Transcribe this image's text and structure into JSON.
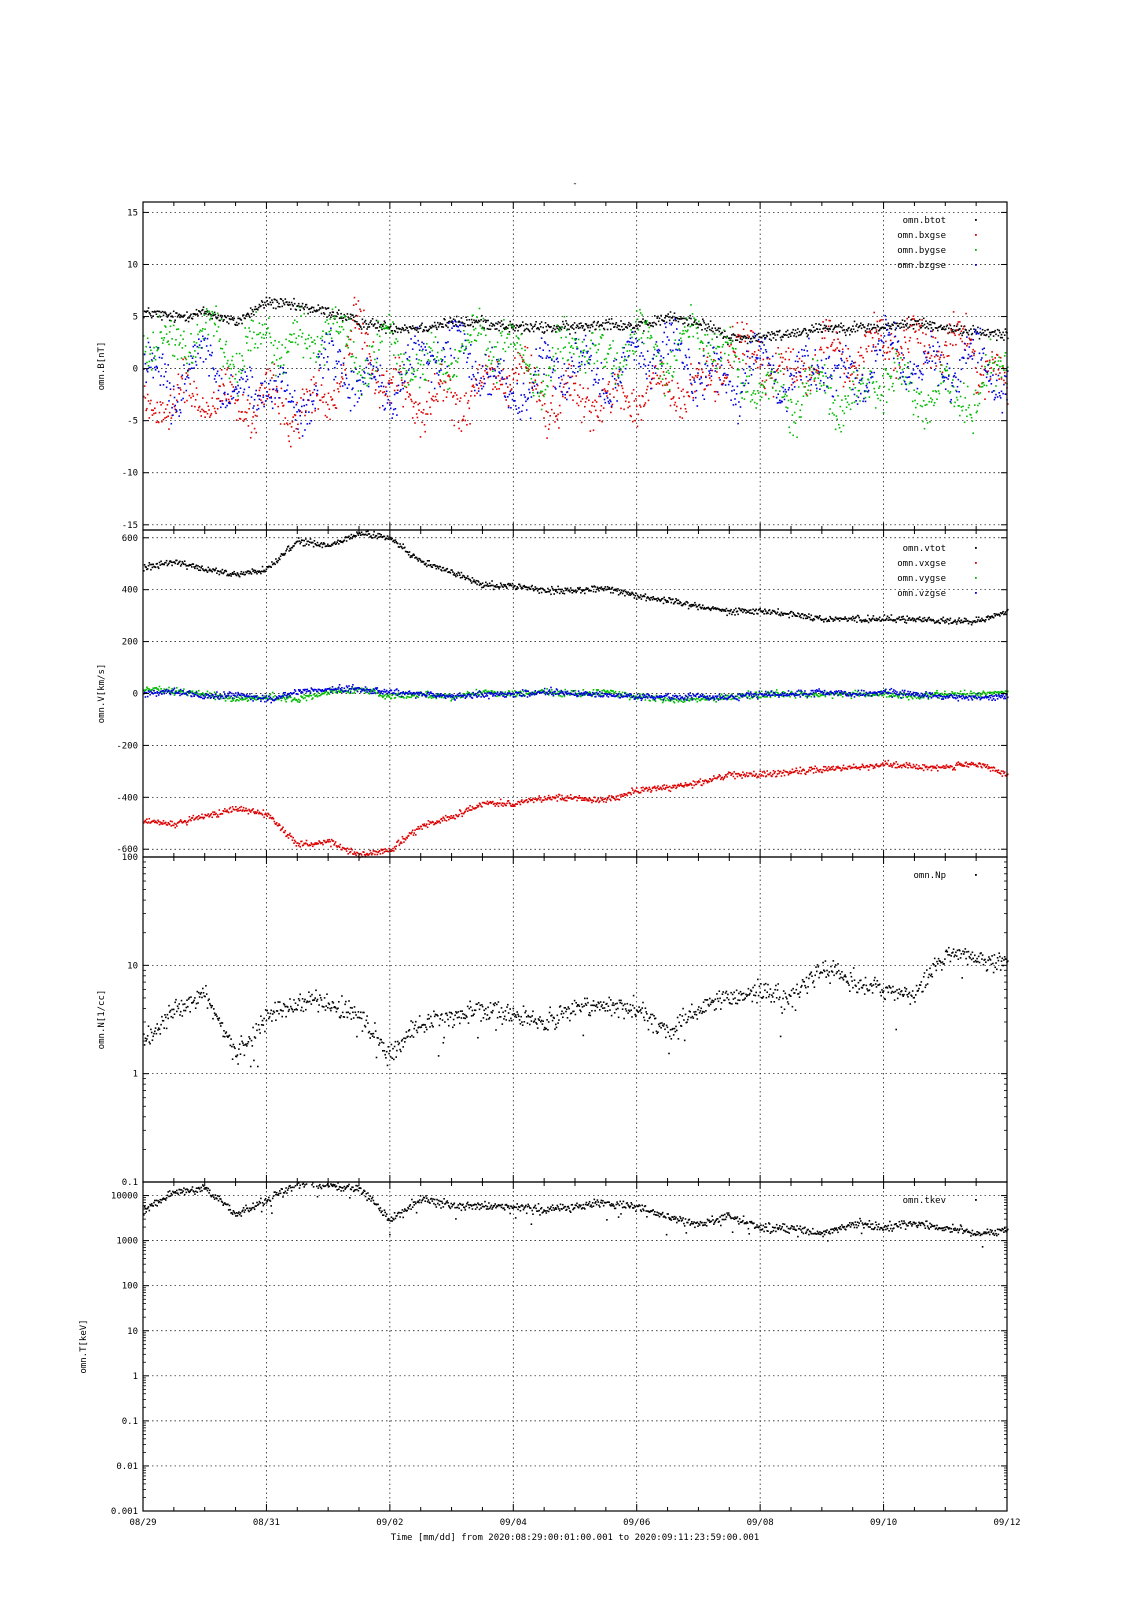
{
  "figure": {
    "title": "-",
    "caption": "Time [mm/dd]  from 2020:08:29:00:01:00.001  to  2020:09:11:23:59:00.001"
  },
  "chart_data": [
    {
      "type": "scatter",
      "ylabel": "omn.B[nT]",
      "xlim": [
        "2020-08-29",
        "2020-09-12"
      ],
      "ylim": [
        -15.5,
        16
      ],
      "yticks": [
        15,
        10,
        5,
        0,
        -5,
        -10,
        -15
      ],
      "ytick_labels": [
        "15",
        "10",
        "5",
        "0",
        "-5",
        "-10",
        "-15"
      ],
      "grid": true,
      "legend_position": "top-right",
      "series": [
        {
          "name": "omn.btot",
          "color": "#000000",
          "x": [
            0,
            0.5,
            1,
            1.5,
            2,
            2.5,
            3,
            3.5,
            4,
            4.5,
            5,
            5.5,
            6,
            6.5,
            7,
            7.5,
            8,
            8.5,
            9,
            9.5,
            10,
            10.5,
            11,
            11.5,
            12,
            12.5,
            13,
            13.5,
            14
          ],
          "y": [
            5.5,
            5.0,
            5.5,
            4.5,
            6.5,
            6.0,
            5.5,
            4.5,
            4.0,
            4.0,
            4.5,
            4.5,
            4.0,
            4.0,
            4.0,
            4.5,
            4.0,
            5.0,
            4.5,
            3.0,
            3.0,
            3.5,
            4.0,
            4.0,
            4.0,
            4.5,
            4.0,
            3.5,
            3.5
          ]
        },
        {
          "name": "omn.bxgse",
          "color": "#dd0000",
          "x": [
            0,
            0.5,
            1,
            1.5,
            2,
            2.5,
            3,
            3.5,
            4,
            4.5,
            5,
            5.5,
            6,
            6.5,
            7,
            7.5,
            8,
            8.5,
            9,
            9.5,
            10,
            10.5,
            11,
            11.5,
            12,
            12.5,
            13,
            13.5,
            14
          ],
          "y": [
            -4.0,
            -3.0,
            -2.5,
            -3.5,
            -3.0,
            -4.0,
            -3.0,
            4.0,
            -2.0,
            -3.0,
            -3.0,
            -2.0,
            0.5,
            -3.0,
            -2.5,
            -3.0,
            -2.5,
            -2.0,
            -2.0,
            2.0,
            1.0,
            -1.0,
            2.0,
            1.0,
            3.0,
            2.0,
            3.0,
            1.5,
            -2.0
          ]
        },
        {
          "name": "omn.bygse",
          "color": "#00bb00",
          "x": [
            0,
            0.5,
            1,
            1.5,
            2,
            2.5,
            3,
            3.5,
            4,
            4.5,
            5,
            5.5,
            6,
            6.5,
            7,
            7.5,
            8,
            8.5,
            9,
            9.5,
            10,
            10.5,
            11,
            11.5,
            12,
            12.5,
            13,
            13.5,
            14
          ],
          "y": [
            3.5,
            2.0,
            4.0,
            1.0,
            3.5,
            2.0,
            4.0,
            0.5,
            2.5,
            0.0,
            1.0,
            3.0,
            2.0,
            -1.0,
            3.0,
            0.0,
            3.5,
            1.0,
            4.0,
            0.5,
            -2.0,
            -3.0,
            -1.0,
            -3.5,
            0.0,
            -3.0,
            -2.0,
            -3.0,
            2.0
          ]
        },
        {
          "name": "omn.bzgse",
          "color": "#0000dd",
          "x": [
            0,
            0.5,
            1,
            1.5,
            2,
            2.5,
            3,
            3.5,
            4,
            4.5,
            5,
            5.5,
            6,
            6.5,
            7,
            7.5,
            8,
            8.5,
            9,
            9.5,
            10,
            10.5,
            11,
            11.5,
            12,
            12.5,
            13,
            13.5,
            14
          ],
          "y": [
            0.0,
            -2.0,
            1.0,
            -3.0,
            -1.0,
            -4.0,
            0.5,
            -1.0,
            -2.0,
            1.0,
            2.5,
            0.0,
            -3.0,
            0.0,
            1.0,
            -1.0,
            1.5,
            2.0,
            0.0,
            -2.0,
            1.0,
            -1.0,
            0.5,
            -1.0,
            2.0,
            1.0,
            0.0,
            1.0,
            -1.0
          ]
        }
      ]
    },
    {
      "type": "scatter",
      "ylabel": "omn.V[km/s]",
      "xlim": [
        "2020-08-29",
        "2020-09-12"
      ],
      "ylim": [
        -630,
        630
      ],
      "yticks": [
        600,
        400,
        200,
        0,
        -200,
        -400,
        -600
      ],
      "ytick_labels": [
        "600",
        "400",
        "200",
        "0",
        "-200",
        "-400",
        "-600"
      ],
      "grid": true,
      "legend_position": "top-right",
      "series": [
        {
          "name": "omn.vtot",
          "color": "#000000",
          "x": [
            0,
            0.5,
            1,
            1.5,
            2,
            2.5,
            3,
            3.5,
            4,
            4.5,
            5,
            5.5,
            6,
            6.5,
            7,
            7.5,
            8,
            8.5,
            9,
            9.5,
            10,
            10.5,
            11,
            11.5,
            12,
            12.5,
            13,
            13.5,
            14
          ],
          "y": [
            490,
            510,
            480,
            460,
            480,
            590,
            570,
            620,
            600,
            510,
            470,
            420,
            420,
            400,
            400,
            410,
            380,
            360,
            340,
            320,
            320,
            310,
            290,
            290,
            290,
            290,
            280,
            280,
            320
          ]
        },
        {
          "name": "omn.vxgse",
          "color": "#dd0000",
          "x": [
            0,
            0.5,
            1,
            1.5,
            2,
            2.5,
            3,
            3.5,
            4,
            4.5,
            5,
            5.5,
            6,
            6.5,
            7,
            7.5,
            8,
            8.5,
            9,
            9.5,
            10,
            10.5,
            11,
            11.5,
            12,
            12.5,
            13,
            13.5,
            14
          ],
          "y": [
            -490,
            -500,
            -470,
            -440,
            -460,
            -580,
            -570,
            -620,
            -600,
            -510,
            -470,
            -420,
            -420,
            -400,
            -400,
            -410,
            -370,
            -360,
            -340,
            -310,
            -310,
            -300,
            -290,
            -280,
            -270,
            -280,
            -280,
            -270,
            -310
          ]
        },
        {
          "name": "omn.vygse",
          "color": "#00bb00",
          "x": [
            0,
            0.5,
            1,
            1.5,
            2,
            2.5,
            3,
            3.5,
            4,
            4.5,
            5,
            5.5,
            6,
            6.5,
            7,
            7.5,
            8,
            8.5,
            9,
            9.5,
            10,
            10.5,
            11,
            11.5,
            12,
            12.5,
            13,
            13.5,
            14
          ],
          "y": [
            20,
            10,
            0,
            -20,
            -10,
            -20,
            10,
            20,
            -10,
            0,
            -10,
            10,
            0,
            10,
            0,
            10,
            -10,
            -20,
            -20,
            -10,
            0,
            0,
            0,
            0,
            0,
            -10,
            0,
            0,
            10
          ]
        },
        {
          "name": "omn.vzgse",
          "color": "#0000dd",
          "x": [
            0,
            0.5,
            1,
            1.5,
            2,
            2.5,
            3,
            3.5,
            4,
            4.5,
            5,
            5.5,
            6,
            6.5,
            7,
            7.5,
            8,
            8.5,
            9,
            9.5,
            10,
            10.5,
            11,
            11.5,
            12,
            12.5,
            13,
            13.5,
            14
          ],
          "y": [
            0,
            10,
            -10,
            0,
            -20,
            10,
            20,
            20,
            10,
            0,
            -10,
            0,
            0,
            10,
            0,
            0,
            -10,
            -10,
            -10,
            -10,
            0,
            0,
            10,
            0,
            10,
            0,
            -10,
            -10,
            -10
          ]
        }
      ]
    },
    {
      "type": "scatter",
      "ylabel": "omn.N[1/cc]",
      "yscale": "log",
      "xlim": [
        "2020-08-29",
        "2020-09-12"
      ],
      "ylim": [
        0.1,
        100
      ],
      "yticks": [
        100,
        10,
        1,
        0.1
      ],
      "ytick_labels": [
        "100",
        "10",
        "1",
        "0.1"
      ],
      "grid": true,
      "legend_position": "top-right",
      "series": [
        {
          "name": "omn.Np",
          "color": "#000000",
          "x": [
            0,
            0.5,
            1,
            1.5,
            2,
            2.5,
            3,
            3.5,
            4,
            4.5,
            5,
            5.5,
            6,
            6.5,
            7,
            7.5,
            8,
            8.5,
            9,
            9.5,
            10,
            10.5,
            11,
            11.5,
            12,
            12.5,
            13,
            13.5,
            14
          ],
          "y": [
            2.0,
            4.0,
            5.5,
            1.5,
            3.5,
            4.5,
            4.5,
            3.5,
            1.5,
            3.0,
            3.5,
            4.0,
            3.5,
            3.0,
            4.0,
            4.5,
            4.0,
            2.5,
            4.0,
            5.0,
            6.0,
            5.0,
            10.0,
            7.0,
            6.0,
            5.5,
            13.0,
            12.0,
            10.5
          ]
        }
      ]
    },
    {
      "type": "scatter",
      "ylabel": "omn.T[keV]",
      "yscale": "log",
      "xlim": [
        "2020-08-29",
        "2020-09-12"
      ],
      "ylim": [
        0.001,
        20000
      ],
      "yticks": [
        10000,
        1000,
        100,
        10,
        1,
        0.1,
        0.01,
        0.001
      ],
      "ytick_labels": [
        "10000",
        "1000",
        "100",
        "10",
        "1",
        "0.1",
        "0.01",
        "0.001"
      ],
      "grid": true,
      "legend_position": "top-right",
      "series": [
        {
          "name": "omn.tkev",
          "color": "#000000",
          "x": [
            0,
            0.5,
            1,
            1.5,
            2,
            2.5,
            3,
            3.5,
            4,
            4.5,
            5,
            5.5,
            6,
            6.5,
            7,
            7.5,
            8,
            8.5,
            9,
            9.5,
            10,
            10.5,
            11,
            11.5,
            12,
            12.5,
            13,
            13.5,
            14
          ],
          "y": [
            5000,
            12000,
            15000,
            4000,
            8000,
            20000,
            18000,
            15000,
            3000,
            9000,
            6000,
            6000,
            5500,
            5000,
            6000,
            7000,
            6000,
            3500,
            2500,
            3500,
            2000,
            2000,
            1500,
            2500,
            2000,
            2500,
            2000,
            1500,
            1800
          ]
        }
      ]
    }
  ],
  "x_axis": {
    "tick_days": [
      0,
      2,
      4,
      6,
      8,
      10,
      12,
      14
    ],
    "tick_labels": [
      "08/29",
      "08/31",
      "09/02",
      "09/04",
      "09/06",
      "09/08",
      "09/10",
      "09/12"
    ]
  }
}
